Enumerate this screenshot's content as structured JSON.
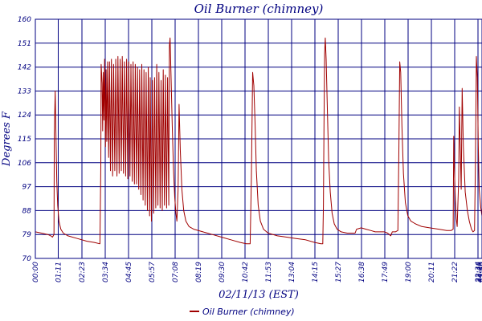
{
  "chart_data": {
    "type": "line",
    "title": "Oil Burner (chimney)",
    "xlabel": "02/11/13 (EST)",
    "ylabel": "Degrees F",
    "ylim": [
      70,
      160
    ],
    "y_ticks": [
      "70",
      "79",
      "88",
      "97",
      "106",
      "115",
      "124",
      "133",
      "142",
      "151",
      "160"
    ],
    "x_ticks": [
      "00:00",
      "01:11",
      "02:23",
      "03:34",
      "04:45",
      "05:57",
      "07:08",
      "08:19",
      "09:30",
      "10:42",
      "11:53",
      "13:04",
      "14:15",
      "15:27",
      "16:38",
      "17:49",
      "19:00",
      "20:11",
      "21:22",
      "22:34",
      "23:45",
      "23:46",
      "23:59"
    ],
    "grid": true,
    "legend_position": "bottom",
    "colors": {
      "series": "#a00000",
      "grid": "#000080",
      "text": "#000080"
    },
    "series": [
      {
        "name": "Oil Burner (chimney)",
        "points": [
          [
            "00:00",
            80
          ],
          [
            "00:20",
            79.5
          ],
          [
            "00:40",
            79
          ],
          [
            "00:50",
            78.5
          ],
          [
            "00:55",
            78
          ],
          [
            "01:00",
            79
          ],
          [
            "01:01",
            117
          ],
          [
            "01:04",
            133
          ],
          [
            "01:07",
            112
          ],
          [
            "01:09",
            99
          ],
          [
            "01:12",
            90
          ],
          [
            "01:16",
            84
          ],
          [
            "01:22",
            81
          ],
          [
            "01:30",
            79.5
          ],
          [
            "01:45",
            78.5
          ],
          [
            "02:15",
            77.5
          ],
          [
            "02:45",
            76.5
          ],
          [
            "03:10",
            76
          ],
          [
            "03:28",
            75.5
          ],
          [
            "03:31",
            105
          ],
          [
            "03:32",
            143
          ],
          [
            "03:35",
            136
          ],
          [
            "03:37",
            118
          ],
          [
            "03:39",
            140
          ],
          [
            "03:41",
            122
          ],
          [
            "03:43",
            145
          ],
          [
            "03:46",
            112
          ],
          [
            "03:48",
            141
          ],
          [
            "03:50",
            114
          ],
          [
            "03:53",
            144
          ],
          [
            "03:56",
            108
          ],
          [
            "03:59",
            144
          ],
          [
            "04:02",
            103
          ],
          [
            "04:05",
            145
          ],
          [
            "04:09",
            101
          ],
          [
            "04:12",
            143
          ],
          [
            "04:16",
            103
          ],
          [
            "04:19",
            145
          ],
          [
            "04:23",
            101
          ],
          [
            "04:26",
            146
          ],
          [
            "04:30",
            102
          ],
          [
            "04:33",
            145
          ],
          [
            "04:37",
            103
          ],
          [
            "04:40",
            146
          ],
          [
            "04:44",
            102
          ],
          [
            "04:47",
            144
          ],
          [
            "04:51",
            101
          ],
          [
            "04:54",
            145
          ],
          [
            "04:58",
            100
          ],
          [
            "05:01",
            144
          ],
          [
            "05:05",
            101
          ],
          [
            "05:08",
            143
          ],
          [
            "05:12",
            99
          ],
          [
            "05:15",
            144
          ],
          [
            "05:19",
            98
          ],
          [
            "05:22",
            143
          ],
          [
            "05:26",
            98
          ],
          [
            "05:29",
            142
          ],
          [
            "05:33",
            96
          ],
          [
            "05:36",
            141
          ],
          [
            "05:40",
            94
          ],
          [
            "05:43",
            143
          ],
          [
            "05:47",
            92
          ],
          [
            "05:50",
            141
          ],
          [
            "05:54",
            90
          ],
          [
            "05:57",
            140
          ],
          [
            "06:01",
            88
          ],
          [
            "06:04",
            142
          ],
          [
            "06:08",
            86
          ],
          [
            "06:10",
            138
          ],
          [
            "06:14",
            84
          ],
          [
            "06:17",
            137
          ],
          [
            "06:21",
            87
          ],
          [
            "06:24",
            138
          ],
          [
            "06:28",
            89
          ],
          [
            "06:31",
            143
          ],
          [
            "06:35",
            90
          ],
          [
            "06:38",
            140
          ],
          [
            "06:42",
            89
          ],
          [
            "06:45",
            137
          ],
          [
            "06:49",
            88
          ],
          [
            "06:52",
            141
          ],
          [
            "06:56",
            90
          ],
          [
            "06:59",
            139
          ],
          [
            "07:03",
            89
          ],
          [
            "07:06",
            138
          ],
          [
            "07:10",
            90
          ],
          [
            "07:12",
            150
          ],
          [
            "07:14",
            153
          ],
          [
            "07:17",
            140
          ],
          [
            "07:21",
            120
          ],
          [
            "07:25",
            104
          ],
          [
            "07:29",
            93
          ],
          [
            "07:33",
            87
          ],
          [
            "07:36",
            84
          ],
          [
            "07:40",
            96
          ],
          [
            "07:43",
            128
          ],
          [
            "07:47",
            111
          ],
          [
            "07:52",
            96
          ],
          [
            "07:58",
            88
          ],
          [
            "08:05",
            84
          ],
          [
            "08:15",
            82
          ],
          [
            "08:30",
            81
          ],
          [
            "09:00",
            80
          ],
          [
            "09:30",
            79
          ],
          [
            "10:00",
            78
          ],
          [
            "10:30",
            77
          ],
          [
            "11:00",
            76
          ],
          [
            "11:20",
            75.5
          ],
          [
            "11:32",
            75.5
          ],
          [
            "11:36",
            100
          ],
          [
            "11:40",
            140
          ],
          [
            "11:44",
            135
          ],
          [
            "11:48",
            120
          ],
          [
            "11:52",
            103
          ],
          [
            "11:58",
            90
          ],
          [
            "12:05",
            84
          ],
          [
            "12:15",
            81
          ],
          [
            "12:30",
            79.5
          ],
          [
            "13:00",
            78.5
          ],
          [
            "13:30",
            78
          ],
          [
            "14:00",
            77.5
          ],
          [
            "14:30",
            77
          ],
          [
            "15:00",
            76
          ],
          [
            "15:20",
            75.5
          ],
          [
            "15:26",
            75.5
          ],
          [
            "15:28",
            90
          ],
          [
            "15:30",
            120
          ],
          [
            "15:32",
            147
          ],
          [
            "15:34",
            153
          ],
          [
            "15:37",
            145
          ],
          [
            "15:41",
            125
          ],
          [
            "15:45",
            107
          ],
          [
            "15:50",
            95
          ],
          [
            "15:56",
            87
          ],
          [
            "16:03",
            83
          ],
          [
            "16:12",
            81
          ],
          [
            "16:25",
            80
          ],
          [
            "16:45",
            79.5
          ],
          [
            "17:00",
            79.5
          ],
          [
            "17:10",
            79.5
          ],
          [
            "17:15",
            81
          ],
          [
            "17:30",
            81.5
          ],
          [
            "17:45",
            81
          ],
          [
            "18:00",
            80.5
          ],
          [
            "18:15",
            80
          ],
          [
            "18:30",
            80
          ],
          [
            "18:45",
            80
          ],
          [
            "18:55",
            79.5
          ],
          [
            "19:05",
            78.5
          ],
          [
            "19:10",
            80
          ],
          [
            "19:20",
            80
          ],
          [
            "19:28",
            80.5
          ],
          [
            "19:31",
            110
          ],
          [
            "19:34",
            144
          ],
          [
            "19:37",
            140
          ],
          [
            "19:41",
            120
          ],
          [
            "19:46",
            102
          ],
          [
            "19:52",
            91
          ],
          [
            "20:00",
            86
          ],
          [
            "20:10",
            84
          ],
          [
            "20:25",
            83
          ],
          [
            "20:45",
            82
          ],
          [
            "21:10",
            81.5
          ],
          [
            "21:40",
            81
          ],
          [
            "22:05",
            80.5
          ],
          [
            "22:20",
            80.5
          ],
          [
            "22:26",
            81
          ],
          [
            "22:28",
            116
          ],
          [
            "22:30",
            104
          ],
          [
            "22:33",
            92
          ],
          [
            "22:36",
            85
          ],
          [
            "22:39",
            82
          ],
          [
            "22:44",
            100
          ],
          [
            "22:46",
            127
          ],
          [
            "22:49",
            111
          ],
          [
            "22:52",
            96
          ],
          [
            "22:55",
            134
          ],
          [
            "22:59",
            112
          ],
          [
            "23:05",
            95
          ],
          [
            "23:12",
            88
          ],
          [
            "23:18",
            84
          ],
          [
            "23:25",
            81
          ],
          [
            "23:30",
            80
          ],
          [
            "23:35",
            80.5
          ],
          [
            "23:38",
            108
          ],
          [
            "23:41",
            146
          ],
          [
            "23:44",
            138
          ],
          [
            "23:47",
            112
          ],
          [
            "23:50",
            96
          ],
          [
            "23:55",
            89
          ],
          [
            "23:59",
            86
          ]
        ]
      }
    ]
  }
}
